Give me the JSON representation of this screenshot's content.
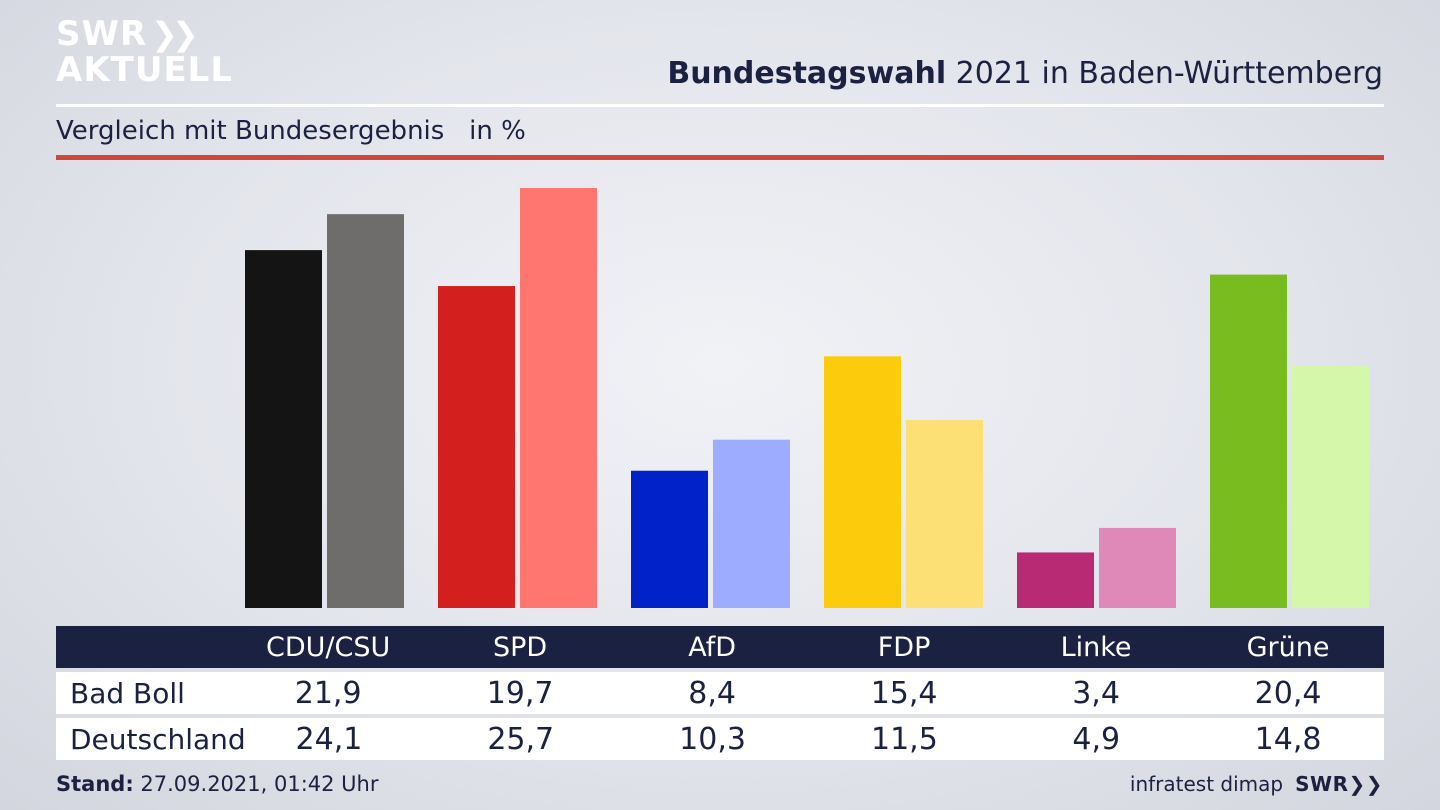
{
  "brand": {
    "line1": "SWR",
    "line1_chevrons": "❯❯",
    "line2": "AKTUELL"
  },
  "header": {
    "title_bold": "Bundestagswahl",
    "title_rest": " 2021 in Baden-Württemberg"
  },
  "subtitle": "Vergleich mit Bundesergebnis   in %",
  "colors": {
    "accent_rule": "#d0483c",
    "table_header_bg": "#1b2140",
    "local": [
      "#141414",
      "#d41f1f",
      "#0022c8",
      "#fccb0b",
      "#b82a74",
      "#79bc1f"
    ],
    "national": [
      "#6e6d6b",
      "#ff7570",
      "#9eacff",
      "#fcdf75",
      "#df89b8",
      "#d5f7aa"
    ]
  },
  "chart_data": {
    "type": "bar",
    "title": "Bundestagswahl 2021 in Baden-Württemberg",
    "subtitle": "Vergleich mit Bundesergebnis   in %",
    "categories": [
      "CDU/CSU",
      "SPD",
      "AfD",
      "FDP",
      "Linke",
      "Grüne"
    ],
    "series": [
      {
        "name": "Bad Boll",
        "values": [
          21.9,
          19.7,
          8.4,
          15.4,
          3.4,
          20.4
        ]
      },
      {
        "name": "Deutschland",
        "values": [
          24.1,
          25.7,
          10.3,
          11.5,
          4.9,
          14.8
        ]
      }
    ],
    "ylim": [
      0,
      26
    ],
    "grid": false,
    "legend": "table below chart"
  },
  "table": {
    "header": [
      "CDU/CSU",
      "SPD",
      "AfD",
      "FDP",
      "Linke",
      "Grüne"
    ],
    "rows": [
      {
        "label": "Bad Boll",
        "values": [
          "21,9",
          "19,7",
          "8,4",
          "15,4",
          "3,4",
          "20,4"
        ]
      },
      {
        "label": "Deutschland",
        "values": [
          "24,1",
          "25,7",
          "10,3",
          "11,5",
          "4,9",
          "14,8"
        ]
      }
    ]
  },
  "footer": {
    "stand_label": "Stand:",
    "stand_value": " 27.09.2021, 01:42 Uhr",
    "source": "infratest dimap",
    "logo": "SWR❯❯"
  }
}
